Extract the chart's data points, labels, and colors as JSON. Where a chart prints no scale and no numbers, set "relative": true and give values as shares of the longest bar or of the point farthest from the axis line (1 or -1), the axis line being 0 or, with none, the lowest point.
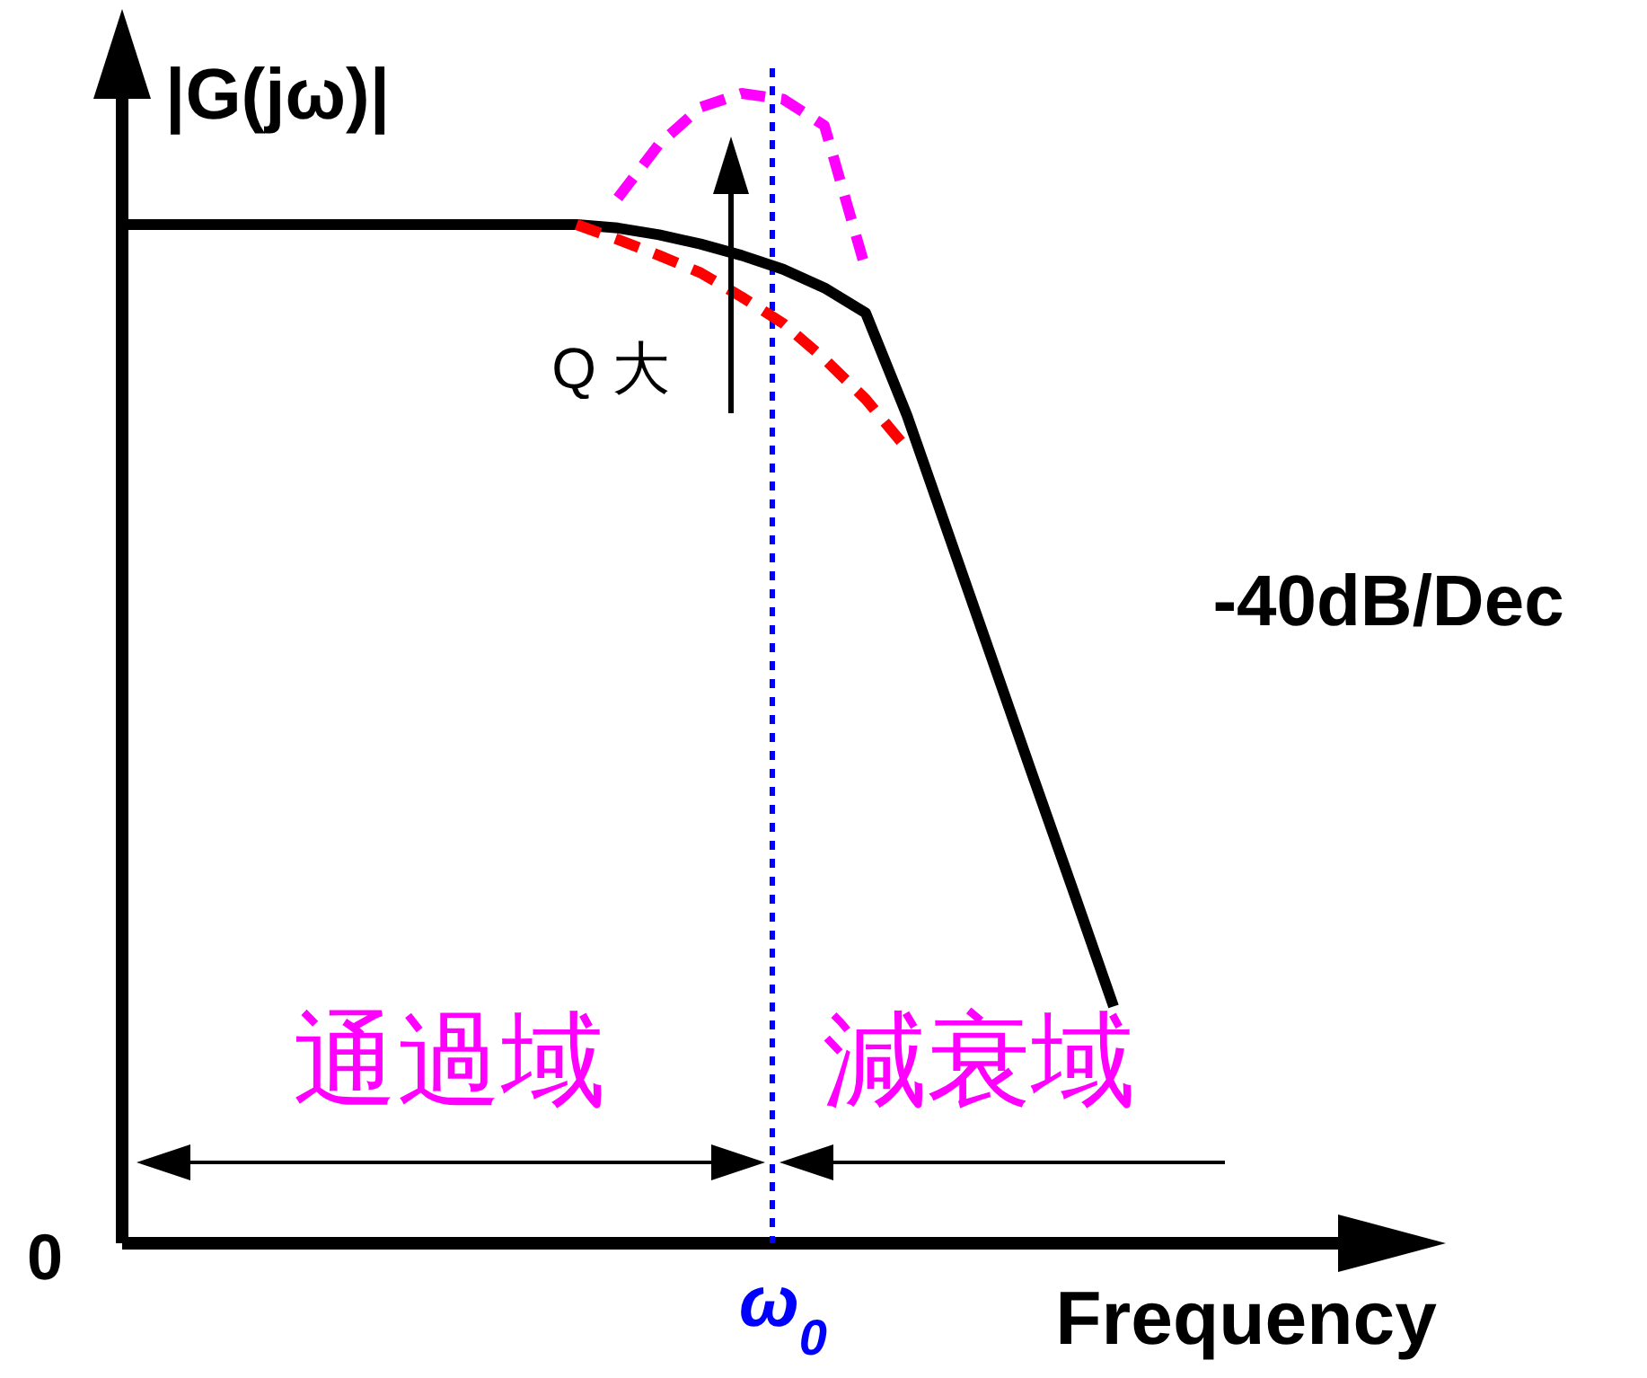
{
  "chart_data": {
    "type": "line",
    "relative": true,
    "xlabel": "Frequency",
    "ylabel": "|G(jω)|",
    "categories": [
      null,
      null,
      null,
      null,
      null,
      null,
      null,
      null,
      null,
      null,
      null,
      null,
      null,
      null,
      null,
      null,
      null,
      null,
      null,
      null,
      null,
      null,
      null,
      null,
      null
    ],
    "series": [
      {
        "color": "#000000",
        "line_style": "solid",
        "values": [
          0.886,
          0.886,
          0.886,
          0.886,
          0.886,
          0.886,
          0.886,
          0.886,
          0.886,
          0.886,
          0.886,
          0.886,
          0.883,
          0.877,
          0.869,
          0.859,
          0.847,
          0.831,
          0.809,
          0.72,
          0.617,
          0.514,
          0.411,
          0.309,
          0.206
        ]
      },
      {
        "color": "#ff0000",
        "line_style": "dashed",
        "values": [
          null,
          null,
          null,
          null,
          null,
          null,
          null,
          null,
          null,
          null,
          null,
          0.886,
          0.873,
          0.859,
          0.844,
          0.823,
          0.8,
          0.769,
          0.734,
          0.691,
          null,
          null,
          null,
          null,
          null
        ]
      },
      {
        "color": "#ff00ff",
        "line_style": "dashed",
        "values": [
          null,
          null,
          null,
          null,
          null,
          null,
          null,
          null,
          null,
          null,
          null,
          null,
          0.909,
          0.956,
          0.988,
          1.0,
          0.995,
          0.972,
          0.847,
          null,
          null,
          null,
          null,
          null,
          null
        ]
      }
    ],
    "annotations": [
      "0",
      "Q 大",
      "-40dB/Dec",
      "通過域",
      "減衰域",
      "ω$_{0}$"
    ]
  }
}
